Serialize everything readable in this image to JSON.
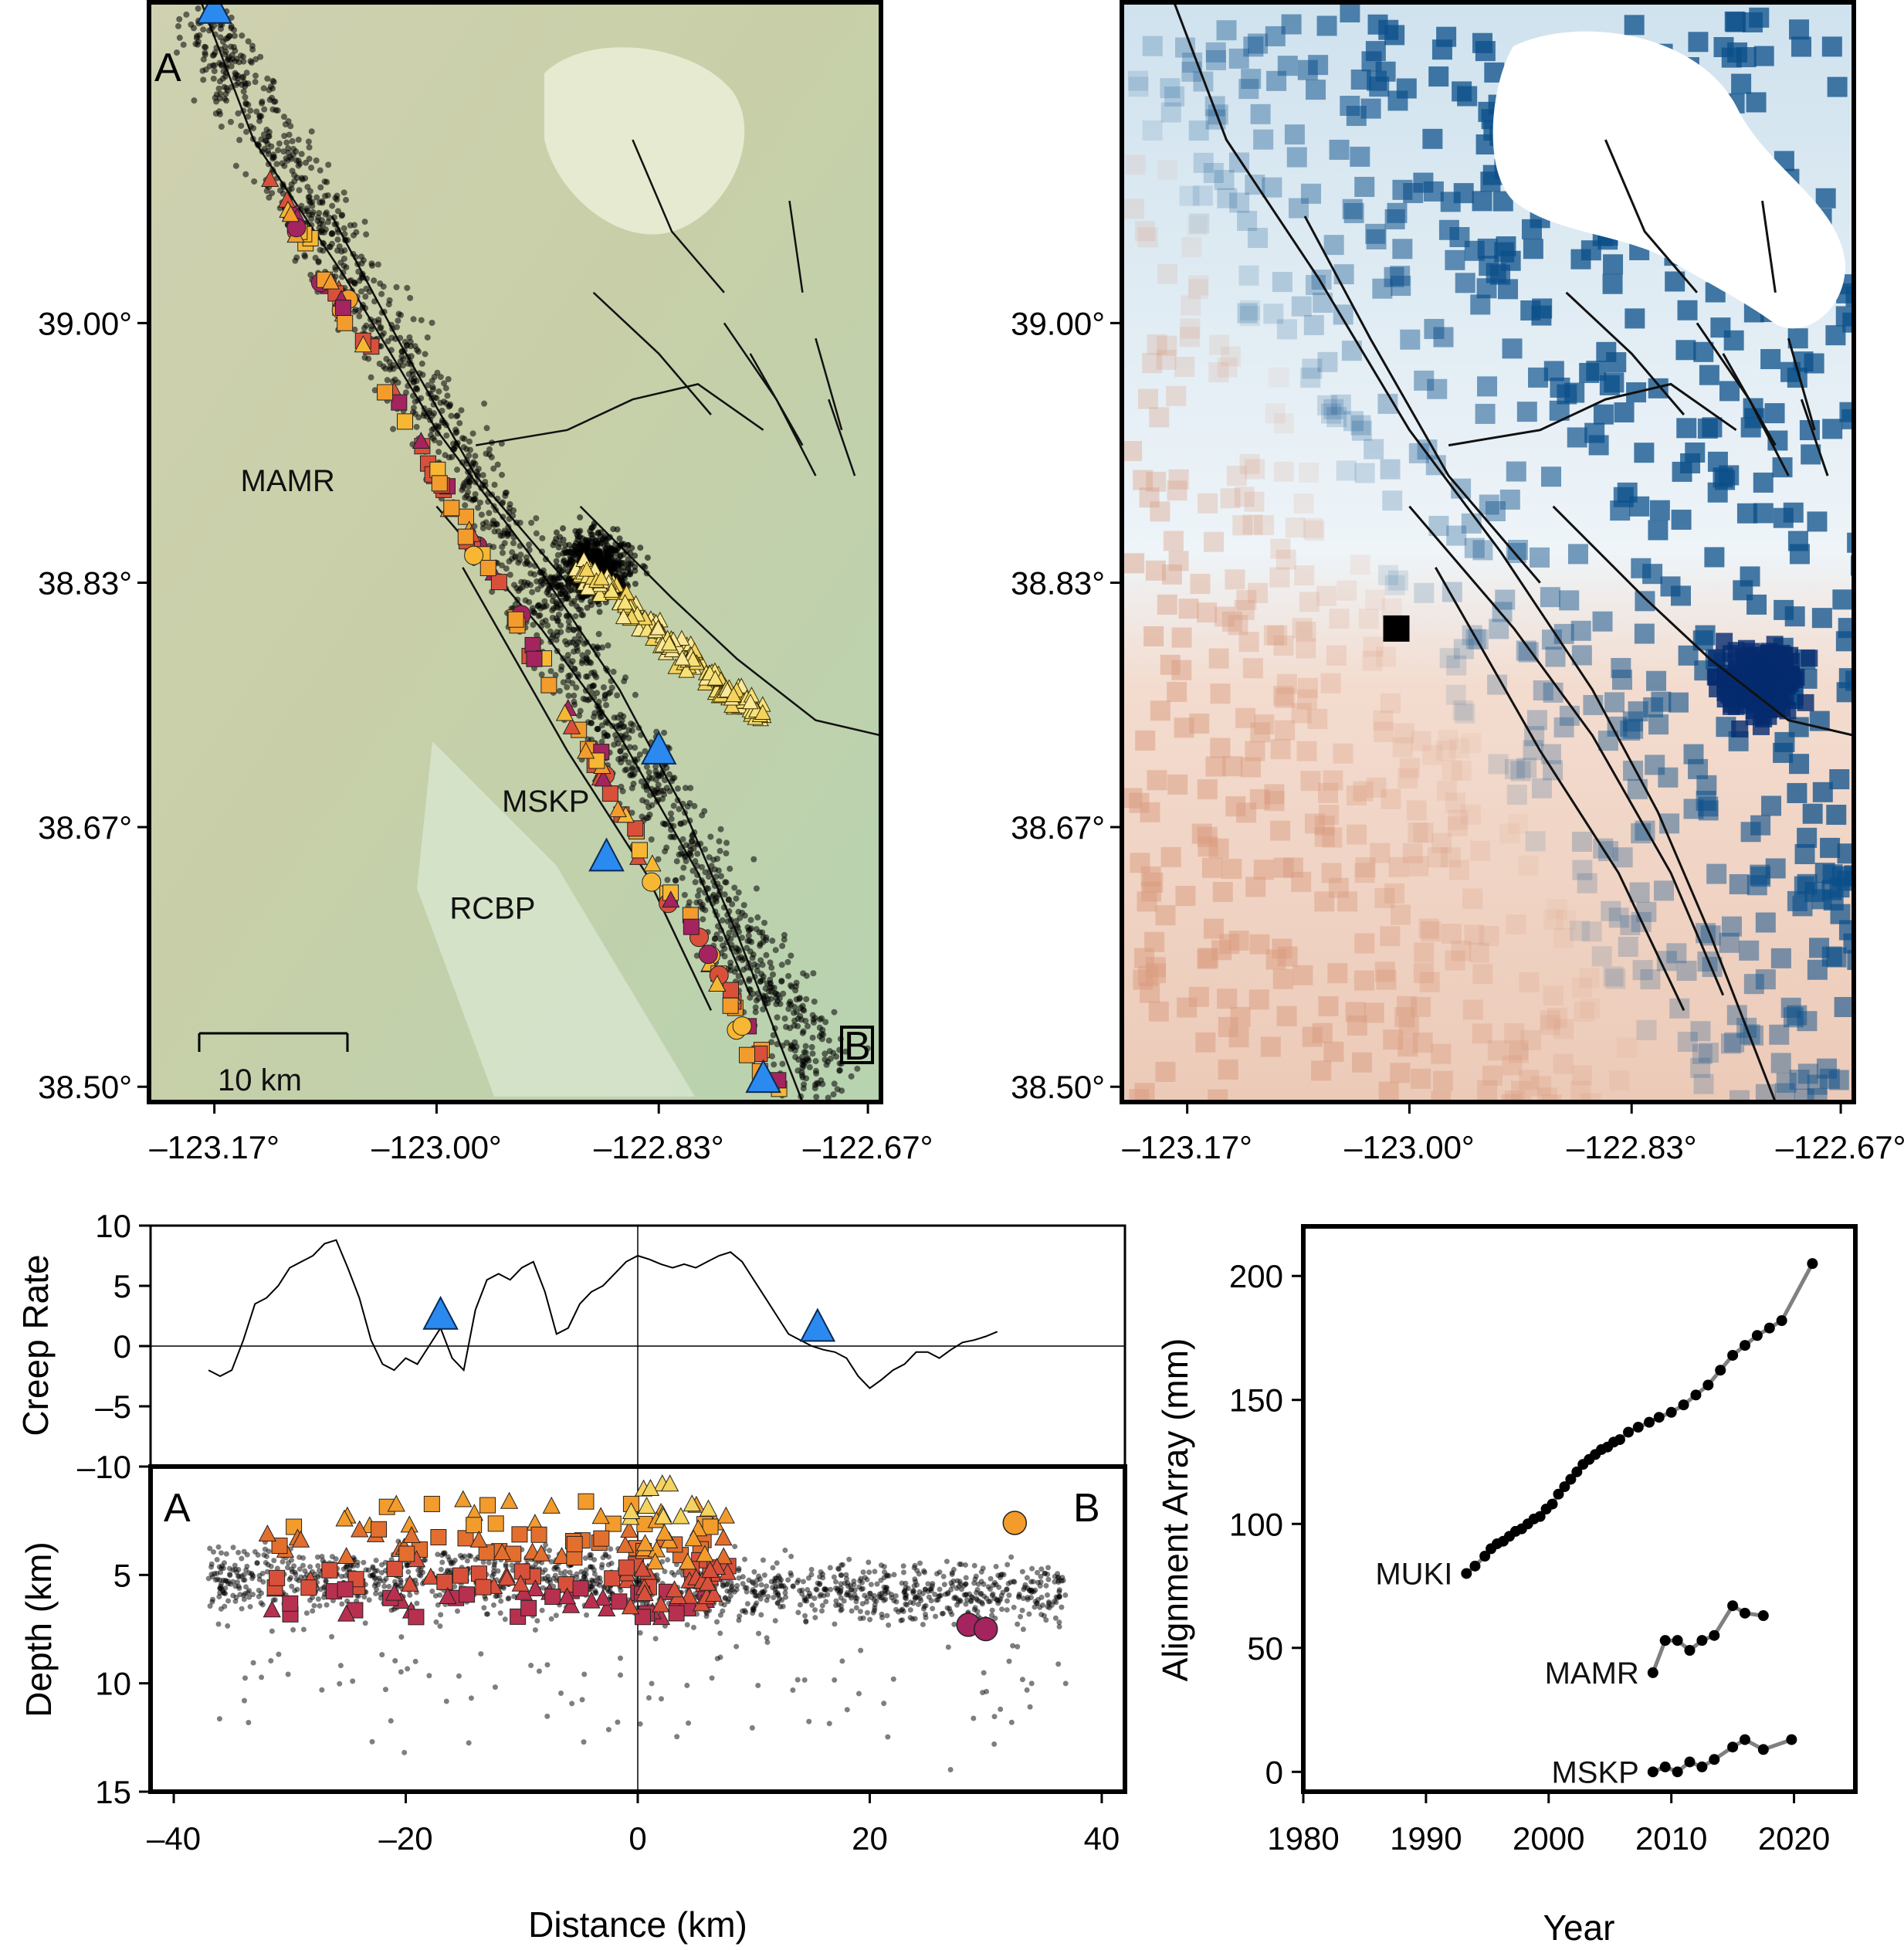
{
  "chart_data": [
    {
      "type": "scatter",
      "panel": "seismicity-map",
      "xlim": [
        -123.22,
        -122.66
      ],
      "ylim": [
        38.49,
        39.21
      ],
      "xticks": [
        "–123.17°",
        "–123.00°",
        "–122.83°",
        "–122.67°"
      ],
      "xtick_values": [
        -123.17,
        -123.0,
        -122.83,
        -122.67
      ],
      "yticks": [
        "38.50°",
        "38.67°",
        "38.83°",
        "39.00°"
      ],
      "ytick_values": [
        38.5,
        38.67,
        38.83,
        39.0
      ],
      "section_labels": [
        "A",
        "B"
      ],
      "scale_bar": "10 km",
      "stations": [
        {
          "name": "MAMR",
          "lon": -123.15,
          "lat": 38.89
        },
        {
          "name": "MSKP",
          "lon": -122.95,
          "lat": 38.68
        },
        {
          "name": "RCBP",
          "lon": -122.99,
          "lat": 38.61
        }
      ],
      "creepmeters": [
        {
          "lon": -123.17,
          "lat": 39.205
        },
        {
          "lon": -122.83,
          "lat": 38.72
        },
        {
          "lon": -122.87,
          "lat": 38.65
        },
        {
          "lon": -122.75,
          "lat": 38.505
        }
      ],
      "colors": {
        "swarm": "#f4d35e",
        "orange": "#f39c2c",
        "red": "#d9503a",
        "magenta": "#a3245e",
        "purple": "#4a1775",
        "creepmeter": "#2a8af0"
      }
    },
    {
      "type": "heatmap",
      "panel": "insar-map",
      "xlim": [
        -123.22,
        -122.66
      ],
      "ylim": [
        38.49,
        39.21
      ],
      "xticks": [
        "–123.17°",
        "–123.00°",
        "–122.83°",
        "–122.67°"
      ],
      "xtick_values": [
        -123.17,
        -123.0,
        -122.83,
        -122.67
      ],
      "yticks": [
        "38.50°",
        "38.67°",
        "38.83°",
        "39.00°"
      ],
      "ytick_values": [
        38.5,
        38.67,
        38.83,
        39.0
      ],
      "reference_point": {
        "lon": -123.01,
        "lat": 38.8
      },
      "colors": {
        "positive": "#0b4f8a",
        "negative": "#d99b7f",
        "zero": "#ffffff"
      }
    },
    {
      "type": "line",
      "panel": "creep-rate-profile",
      "ylabel": "Creep Rate",
      "xlim": [
        -42,
        42
      ],
      "ylim": [
        -10,
        10
      ],
      "yticks": [
        "10",
        "5",
        "0",
        "–5",
        "–10"
      ],
      "ytick_values": [
        10,
        5,
        0,
        -5,
        -10
      ],
      "x": [
        -37,
        -36,
        -35,
        -34,
        -33,
        -32,
        -31,
        -30,
        -29,
        -28,
        -27,
        -26,
        -25,
        -24,
        -23,
        -22,
        -21,
        -20,
        -19,
        -18,
        -17,
        -16,
        -15,
        -14,
        -13,
        -12,
        -11,
        -10,
        -9,
        -8,
        -7,
        -6,
        -5,
        -4,
        -3,
        -2,
        -1,
        0,
        1,
        2,
        3,
        4,
        5,
        6,
        7,
        8,
        9,
        10,
        11,
        12,
        13,
        14,
        15,
        16,
        17,
        18,
        19,
        20,
        21,
        22,
        23,
        24,
        25,
        26,
        27,
        28,
        29,
        30,
        31
      ],
      "y": [
        -2.0,
        -2.5,
        -2.0,
        0.5,
        3.5,
        4.0,
        5.0,
        6.5,
        7.0,
        7.5,
        8.5,
        8.8,
        6.5,
        4.0,
        0.5,
        -1.5,
        -2.0,
        -1.0,
        -1.5,
        0.0,
        1.5,
        -1.0,
        -2.0,
        3.0,
        5.5,
        6.0,
        5.5,
        6.5,
        7.0,
        4.5,
        1.0,
        1.5,
        3.5,
        4.5,
        5.0,
        6.0,
        7.0,
        7.5,
        7.2,
        6.8,
        6.5,
        6.8,
        6.5,
        7.0,
        7.5,
        7.8,
        7.0,
        5.5,
        4.0,
        2.5,
        1.0,
        0.5,
        0.0,
        -0.3,
        -0.5,
        -1.0,
        -2.5,
        -3.5,
        -2.8,
        -2.0,
        -1.5,
        -0.5,
        -0.5,
        -1.0,
        -0.3,
        0.3,
        0.5,
        0.8,
        1.2
      ],
      "creepmeters": [
        {
          "x": -17,
          "y": 2.5
        },
        {
          "x": 15.5,
          "y": 1.5
        }
      ],
      "color": "#000000"
    },
    {
      "type": "scatter",
      "panel": "depth-section",
      "xlabel": "Distance (km)",
      "ylabel": "Depth (km)",
      "xlim": [
        -42,
        42
      ],
      "ylim": [
        0,
        15
      ],
      "xticks": [
        "–40",
        "–20",
        "0",
        "20",
        "40"
      ],
      "xtick_values": [
        -40,
        -20,
        0,
        20,
        40
      ],
      "yticks": [
        "5",
        "10",
        "15"
      ],
      "ytick_values": [
        5,
        10,
        15
      ],
      "section_labels": [
        "A",
        "B"
      ],
      "circles": [
        {
          "x": 32.5,
          "y": 2.6
        },
        {
          "x": 28.5,
          "y": 7.3
        },
        {
          "x": 30.0,
          "y": 7.5
        }
      ]
    },
    {
      "type": "line",
      "panel": "alignment-array",
      "xlabel": "Year",
      "ylabel": "Alignment Array (mm)",
      "xlim": [
        1980,
        2025
      ],
      "ylim": [
        -8,
        220
      ],
      "xticks": [
        "1980",
        "1990",
        "2000",
        "2010",
        "2020"
      ],
      "xtick_values": [
        1980,
        1990,
        2000,
        2010,
        2020
      ],
      "yticks": [
        "0",
        "50",
        "100",
        "150",
        "200"
      ],
      "ytick_values": [
        0,
        50,
        100,
        150,
        200
      ],
      "series": [
        {
          "name": "MUKI",
          "x": [
            1993.3,
            1994,
            1994.8,
            1995.3,
            1995.8,
            1996.3,
            1996.8,
            1997.3,
            1997.8,
            1998.3,
            1998.8,
            1999.3,
            1999.8,
            2000.3,
            2000.8,
            2001.3,
            2001.8,
            2002.3,
            2002.8,
            2003.3,
            2003.8,
            2004.3,
            2004.8,
            2005.3,
            2005.8,
            2006.5,
            2007.3,
            2008.2,
            2009.0,
            2010.0,
            2011.0,
            2012.0,
            2013.0,
            2014.0,
            2015.0,
            2016.0,
            2017.0,
            2018.0,
            2019.0,
            2021.5
          ],
          "y": [
            80,
            83,
            87,
            90,
            92,
            93,
            95,
            97,
            98,
            100,
            102,
            103,
            106,
            108,
            112,
            115,
            118,
            121,
            124,
            126,
            128,
            130,
            131,
            133,
            134,
            137,
            139,
            141,
            143,
            145,
            148,
            152,
            156,
            162,
            168,
            172,
            176,
            179,
            182,
            205
          ]
        },
        {
          "name": "MAMR",
          "x": [
            2008.5,
            2009.5,
            2010.5,
            2011.5,
            2012.5,
            2013.5,
            2015.0,
            2016.0,
            2017.5
          ],
          "y": [
            40,
            53,
            53,
            49,
            53,
            55,
            67,
            64,
            63
          ]
        },
        {
          "name": "MSKP",
          "x": [
            2008.5,
            2009.5,
            2010.5,
            2011.5,
            2012.5,
            2013.5,
            2015.0,
            2016.0,
            2017.5,
            2019.8
          ],
          "y": [
            0,
            2,
            0,
            4,
            2,
            5,
            10,
            13,
            9,
            13
          ]
        }
      ],
      "color": "#000000"
    }
  ]
}
